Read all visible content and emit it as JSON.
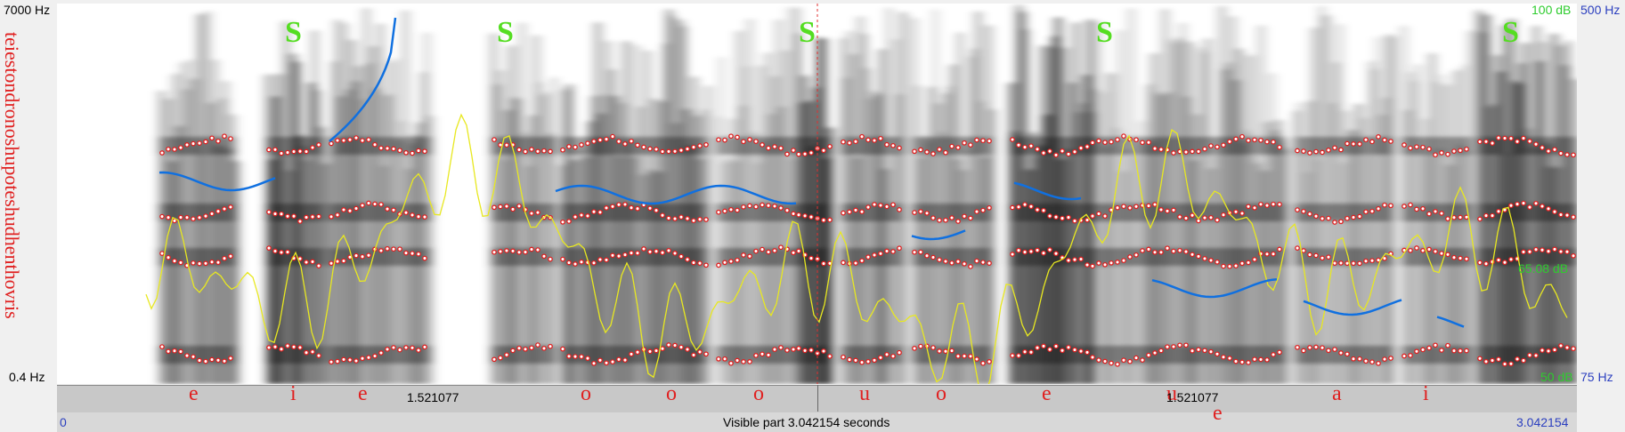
{
  "axes": {
    "freq_top": "7000 Hz",
    "freq_bottom": "0.4 Hz",
    "intensity_top": "100 dB",
    "pitch_top": "500 Hz",
    "intensity_cursor": "65.08 dB",
    "intensity_bottom": "50 dB",
    "pitch_bottom": "75 Hz"
  },
  "transcript": "teiestondronoshupoteshudhenthovris",
  "s_marks": [
    "S",
    "S",
    "S",
    "S",
    "S"
  ],
  "tier": {
    "labels": [
      "e",
      "i",
      "e",
      "o",
      "o",
      "o",
      "u",
      "o",
      "e",
      "u",
      "a",
      "i"
    ],
    "lower_labels": [
      "e"
    ]
  },
  "cursor": {
    "times": [
      "1.521077",
      "1.521077"
    ]
  },
  "footer": {
    "start": "0",
    "visible": "Visible part 3.042154 seconds",
    "end": "3.042154"
  }
}
